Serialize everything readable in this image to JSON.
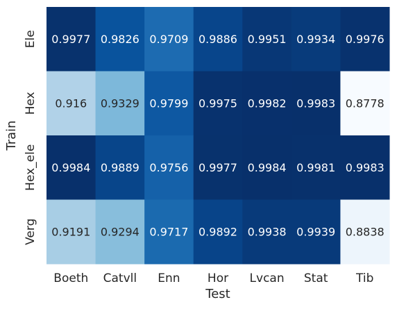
{
  "chart_data": {
    "type": "heatmap",
    "xlabel": "Test",
    "ylabel": "Train",
    "x_categories": [
      "Boeth",
      "Catvll",
      "Enn",
      "Hor",
      "Lvcan",
      "Stat",
      "Tib"
    ],
    "y_categories": [
      "Ele",
      "Hex",
      "Hex_ele",
      "Verg"
    ],
    "values": [
      [
        0.9977,
        0.9826,
        0.9709,
        0.9886,
        0.9951,
        0.9934,
        0.9976
      ],
      [
        0.916,
        0.9329,
        0.9799,
        0.9975,
        0.9982,
        0.9983,
        0.8778
      ],
      [
        0.9984,
        0.9889,
        0.9756,
        0.9977,
        0.9984,
        0.9981,
        0.9983
      ],
      [
        0.9191,
        0.9294,
        0.9717,
        0.9892,
        0.9938,
        0.9939,
        0.8838
      ]
    ],
    "colormap": "Blues",
    "colorbar": false,
    "grid": false,
    "vmin": 0.8778,
    "vmax": 0.9984
  }
}
